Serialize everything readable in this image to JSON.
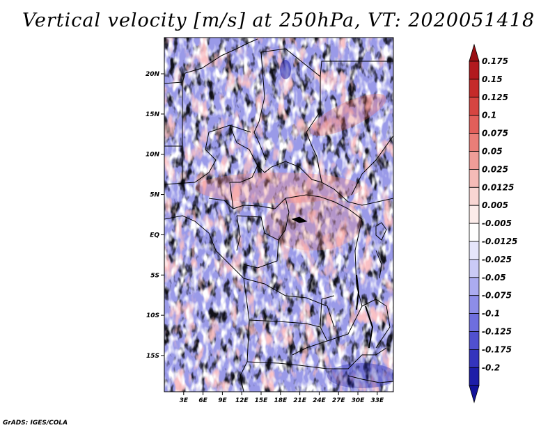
{
  "title": "Vertical velocity [m/s] at 250hPa, VT: 2020051418",
  "credit": "GrADS: IGES/COLA",
  "map": {
    "lon_range": [
      0,
      35.5
    ],
    "lat_range": [
      -19.5,
      24.5
    ],
    "lat_ticks": [
      {
        "value": 20,
        "label": "20N"
      },
      {
        "value": 15,
        "label": "15N"
      },
      {
        "value": 10,
        "label": "10N"
      },
      {
        "value": 5,
        "label": "5N"
      },
      {
        "value": 0,
        "label": "EQ"
      },
      {
        "value": -5,
        "label": "5S"
      },
      {
        "value": -10,
        "label": "10S"
      },
      {
        "value": -15,
        "label": "15S"
      }
    ],
    "lon_ticks": [
      {
        "value": 3,
        "label": "3E"
      },
      {
        "value": 6,
        "label": "6E"
      },
      {
        "value": 9,
        "label": "9E"
      },
      {
        "value": 12,
        "label": "12E"
      },
      {
        "value": 15,
        "label": "15E"
      },
      {
        "value": 18,
        "label": "18E"
      },
      {
        "value": 21,
        "label": "21E"
      },
      {
        "value": 24,
        "label": "24E"
      },
      {
        "value": 27,
        "label": "27E"
      },
      {
        "value": 30,
        "label": "30E"
      },
      {
        "value": 33,
        "label": "33E"
      }
    ]
  },
  "colorbar": {
    "levels": [
      {
        "label": "0.175",
        "color": "#b2191e"
      },
      {
        "label": "0.15",
        "color": "#c52b2a"
      },
      {
        "label": "0.125",
        "color": "#d64541"
      },
      {
        "label": "0.1",
        "color": "#e25f5a"
      },
      {
        "label": "0.075",
        "color": "#ea7e78"
      },
      {
        "label": "0.05",
        "color": "#f09d98"
      },
      {
        "label": "0.025",
        "color": "#f5bbb7"
      },
      {
        "label": "0.0125",
        "color": "#f9d6d3"
      },
      {
        "label": "0.005",
        "color": "#fcecea"
      },
      {
        "label": "-0.005",
        "color": "#ffffff"
      },
      {
        "label": "-0.0125",
        "color": "#e6e6fb"
      },
      {
        "label": "-0.025",
        "color": "#cacaf6"
      },
      {
        "label": "-0.05",
        "color": "#ababf0"
      },
      {
        "label": "-0.075",
        "color": "#8d8de8"
      },
      {
        "label": "-0.1",
        "color": "#6e6ede"
      },
      {
        "label": "-0.125",
        "color": "#5050cf"
      },
      {
        "label": "-0.175",
        "color": "#3434bd"
      },
      {
        "label": "-0.2",
        "color": "#1d1da8"
      }
    ],
    "top_arrow_color": "#9a0f13",
    "bottom_arrow_color": "#12129a"
  }
}
